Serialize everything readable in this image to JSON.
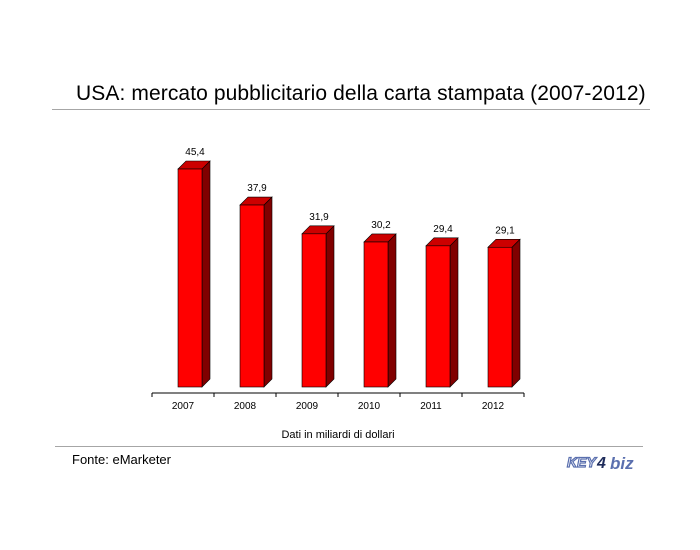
{
  "title": "USA: mercato pubblicitario della carta stampata (2007-2012)",
  "caption": "Dati in miliardi di dollari",
  "source": "Fonte: eMarketer",
  "logo": {
    "part1": "KEY",
    "part2": "4",
    "part3": "biz"
  },
  "colors": {
    "bar_front": "#ff0000",
    "bar_top": "#cc0000",
    "bar_side": "#800000",
    "logo_blue": "#5a6fae",
    "logo_dark": "#1e2b5a"
  },
  "chart_data": {
    "type": "bar",
    "categories": [
      "2007",
      "2008",
      "2009",
      "2010",
      "2011",
      "2012"
    ],
    "values": [
      45.4,
      37.9,
      31.9,
      30.2,
      29.4,
      29.1
    ],
    "value_labels": [
      "45,4",
      "37,9",
      "31,9",
      "30,2",
      "29,4",
      "29,1"
    ],
    "xlabel": "",
    "ylabel": "",
    "ylim": [
      0,
      45.4
    ],
    "grid": false,
    "legend": "none",
    "style": "3d-bars"
  }
}
